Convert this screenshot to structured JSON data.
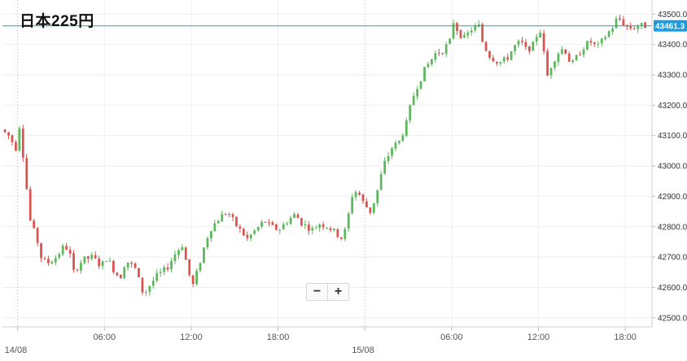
{
  "title": "日本225円",
  "zoom": {
    "minus_label": "−",
    "plus_label": "+"
  },
  "chart_data": {
    "type": "candlestick",
    "y_ticks": [
      42500,
      42600,
      42700,
      42800,
      42900,
      43000,
      43100,
      43200,
      43300,
      43400,
      43500
    ],
    "y_tick_labels": [
      "42500.0",
      "42600.0",
      "42700.0",
      "42800.0",
      "42900.0",
      "43000.0",
      "43100.0",
      "43200.0",
      "43300.0",
      "43400.0",
      "43500.0"
    ],
    "ylim": [
      42470,
      43525
    ],
    "x_ticks": [
      {
        "label": "14/08",
        "hour": 0,
        "date": true
      },
      {
        "label": "06:00",
        "hour": 6
      },
      {
        "label": "12:00",
        "hour": 12
      },
      {
        "label": "18:00",
        "hour": 18
      },
      {
        "label": "15/08",
        "hour": 24,
        "date": true
      },
      {
        "label": "06:00",
        "hour": 30
      },
      {
        "label": "12:00",
        "hour": 36
      },
      {
        "label": "18:00",
        "hour": 42
      }
    ],
    "xlim_hours": [
      -1.05,
      43.85
    ],
    "candle_interval_hours": 0.25,
    "current_price": 43461.3,
    "current_price_label": "43461.3",
    "colors": {
      "up": "#5cb85c",
      "down": "#d9534f",
      "price_line": "#26a69a",
      "price_tag": "#1e9be0",
      "grid": "#eeeeee"
    },
    "path": [
      [
        -1.0,
        43120
      ],
      [
        -0.5,
        43100
      ],
      [
        0.0,
        43060
      ],
      [
        0.2,
        43150
      ],
      [
        0.6,
        43000
      ],
      [
        0.8,
        42900
      ],
      [
        1.0,
        42820
      ],
      [
        1.5,
        42750
      ],
      [
        1.8,
        42690
      ],
      [
        2.2,
        42680
      ],
      [
        2.8,
        42700
      ],
      [
        3.4,
        42740
      ],
      [
        3.8,
        42700
      ],
      [
        4.0,
        42650
      ],
      [
        4.6,
        42690
      ],
      [
        5.3,
        42700
      ],
      [
        5.9,
        42670
      ],
      [
        6.3,
        42700
      ],
      [
        6.6,
        42670
      ],
      [
        7.2,
        42630
      ],
      [
        7.6,
        42690
      ],
      [
        8.3,
        42660
      ],
      [
        8.7,
        42590
      ],
      [
        8.9,
        42580
      ],
      [
        9.3,
        42610
      ],
      [
        9.8,
        42640
      ],
      [
        10.4,
        42660
      ],
      [
        11.0,
        42710
      ],
      [
        11.5,
        42740
      ],
      [
        11.8,
        42680
      ],
      [
        12.2,
        42600
      ],
      [
        12.6,
        42660
      ],
      [
        13.0,
        42730
      ],
      [
        13.4,
        42790
      ],
      [
        14.1,
        42830
      ],
      [
        14.6,
        42850
      ],
      [
        15.3,
        42800
      ],
      [
        16.0,
        42760
      ],
      [
        16.6,
        42790
      ],
      [
        17.2,
        42820
      ],
      [
        17.6,
        42800
      ],
      [
        18.2,
        42790
      ],
      [
        18.8,
        42820
      ],
      [
        19.3,
        42840
      ],
      [
        19.8,
        42810
      ],
      [
        20.5,
        42790
      ],
      [
        21.0,
        42810
      ],
      [
        21.6,
        42800
      ],
      [
        22.1,
        42780
      ],
      [
        22.6,
        42760
      ],
      [
        22.9,
        42810
      ],
      [
        23.2,
        42900
      ],
      [
        23.6,
        42920
      ],
      [
        24.0,
        42880
      ],
      [
        24.5,
        42850
      ],
      [
        24.9,
        42900
      ],
      [
        25.2,
        42960
      ],
      [
        25.5,
        43010
      ],
      [
        26.0,
        43060
      ],
      [
        26.5,
        43080
      ],
      [
        27.0,
        43140
      ],
      [
        27.4,
        43220
      ],
      [
        27.8,
        43270
      ],
      [
        28.3,
        43320
      ],
      [
        29.0,
        43370
      ],
      [
        29.5,
        43380
      ],
      [
        30.0,
        43410
      ],
      [
        30.2,
        43480
      ],
      [
        30.6,
        43440
      ],
      [
        31.0,
        43420
      ],
      [
        31.5,
        43450
      ],
      [
        32.0,
        43460
      ],
      [
        32.3,
        43400
      ],
      [
        32.8,
        43360
      ],
      [
        33.4,
        43340
      ],
      [
        33.9,
        43350
      ],
      [
        34.4,
        43390
      ],
      [
        34.9,
        43410
      ],
      [
        35.3,
        43380
      ],
      [
        35.8,
        43400
      ],
      [
        36.2,
        43460
      ],
      [
        36.5,
        43370
      ],
      [
        36.7,
        43290
      ],
      [
        37.0,
        43330
      ],
      [
        37.4,
        43370
      ],
      [
        37.9,
        43390
      ],
      [
        38.4,
        43330
      ],
      [
        38.8,
        43360
      ],
      [
        39.2,
        43390
      ],
      [
        39.7,
        43410
      ],
      [
        40.2,
        43390
      ],
      [
        40.8,
        43430
      ],
      [
        41.3,
        43460
      ],
      [
        41.6,
        43490
      ],
      [
        42.0,
        43470
      ],
      [
        42.3,
        43455
      ],
      [
        42.7,
        43455
      ],
      [
        43.0,
        43462
      ],
      [
        43.4,
        43461
      ]
    ]
  }
}
